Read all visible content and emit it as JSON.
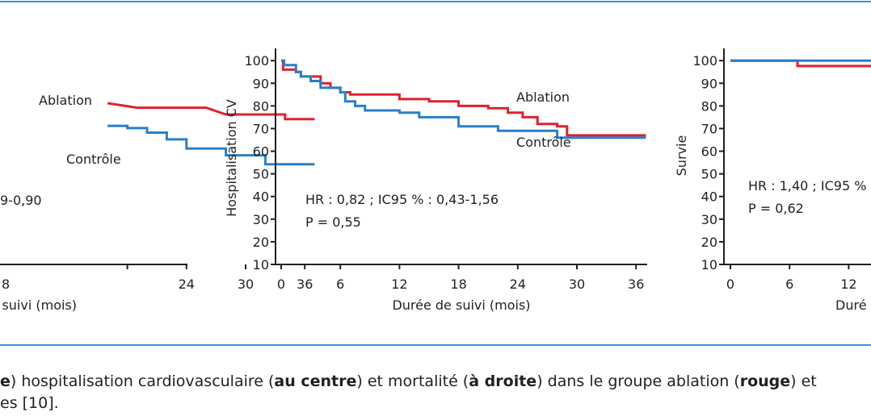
{
  "colors": {
    "ablation": "#e0202e",
    "controle": "#2a7fc8",
    "frame": "#3a8dde",
    "axis": "#231f20"
  },
  "chart_data": [
    {
      "type": "line",
      "title": "",
      "xlabel": "Durée de suivi (mois)",
      "ylabel": "",
      "xlim": [
        0,
        37
      ],
      "ylim": [
        0,
        100
      ],
      "x_ticks": [
        "24",
        "30",
        "36"
      ],
      "x_tick_first_partial": "8",
      "y_ticks": [],
      "series": [
        {
          "name": "Ablation",
          "color": "#e0202e",
          "points": [
            [
              16,
              88
            ],
            [
              19,
              86
            ],
            [
              26,
              86
            ],
            [
              28,
              83
            ],
            [
              34,
              83
            ],
            [
              34,
              81
            ],
            [
              37,
              81
            ]
          ]
        },
        {
          "name": "Contrôle",
          "color": "#2a7fc8",
          "points": [
            [
              16,
              78
            ],
            [
              18,
              78
            ],
            [
              18,
              77
            ],
            [
              20,
              77
            ],
            [
              20,
              75
            ],
            [
              22,
              75
            ],
            [
              22,
              72
            ],
            [
              24,
              72
            ],
            [
              24,
              68
            ],
            [
              28,
              68
            ],
            [
              28,
              65
            ],
            [
              32,
              65
            ],
            [
              32,
              61
            ],
            [
              37,
              61
            ]
          ]
        }
      ],
      "annotations": [
        "9-0,90"
      ]
    },
    {
      "type": "line",
      "title": "",
      "xlabel": "Durée de suivi (mois)",
      "ylabel": "Hospitalisation CV",
      "xlim": [
        0,
        37
      ],
      "ylim": [
        5,
        102
      ],
      "x_ticks": [
        "0",
        "6",
        "12",
        "18",
        "24",
        "30",
        "36"
      ],
      "y_ticks": [
        "10",
        "20",
        "30",
        "40",
        "50",
        "60",
        "70",
        "80",
        "90",
        "100"
      ],
      "series": [
        {
          "name": "Ablation",
          "color": "#e0202e",
          "points": [
            [
              0,
              100
            ],
            [
              0.2,
              100
            ],
            [
              0.2,
              96
            ],
            [
              1.5,
              96
            ],
            [
              1.5,
              95
            ],
            [
              2,
              95
            ],
            [
              2,
              93
            ],
            [
              4,
              93
            ],
            [
              4,
              90
            ],
            [
              5,
              90
            ],
            [
              5,
              88
            ],
            [
              6,
              88
            ],
            [
              6,
              86
            ],
            [
              7,
              86
            ],
            [
              7,
              85
            ],
            [
              12,
              85
            ],
            [
              12,
              83
            ],
            [
              15,
              83
            ],
            [
              15,
              82
            ],
            [
              18,
              82
            ],
            [
              18,
              80
            ],
            [
              21,
              80
            ],
            [
              21,
              79
            ],
            [
              23,
              79
            ],
            [
              23,
              77
            ],
            [
              24.5,
              77
            ],
            [
              24.5,
              75
            ],
            [
              26,
              75
            ],
            [
              26,
              72
            ],
            [
              28,
              72
            ],
            [
              28,
              71
            ],
            [
              29,
              71
            ],
            [
              29,
              67
            ],
            [
              37,
              67
            ]
          ]
        },
        {
          "name": "Contrôle",
          "color": "#2a7fc8",
          "points": [
            [
              0,
              100
            ],
            [
              0.3,
              100
            ],
            [
              0.3,
              98
            ],
            [
              1.5,
              98
            ],
            [
              1.5,
              95
            ],
            [
              2,
              95
            ],
            [
              2,
              93
            ],
            [
              3,
              93
            ],
            [
              3,
              91
            ],
            [
              4,
              91
            ],
            [
              4,
              88
            ],
            [
              6,
              88
            ],
            [
              6,
              86
            ],
            [
              6.5,
              86
            ],
            [
              6.5,
              82
            ],
            [
              7.5,
              82
            ],
            [
              7.5,
              80
            ],
            [
              8.5,
              80
            ],
            [
              8.5,
              78
            ],
            [
              12,
              78
            ],
            [
              12,
              77
            ],
            [
              14,
              77
            ],
            [
              14,
              75
            ],
            [
              18,
              75
            ],
            [
              18,
              71
            ],
            [
              22,
              71
            ],
            [
              22,
              69
            ],
            [
              28,
              69
            ],
            [
              28,
              66
            ],
            [
              37,
              66
            ]
          ]
        }
      ],
      "series_labels": [
        "Ablation",
        "Contrôle"
      ],
      "annotations": [
        "HR : 0,82 ; IC95 % : 0,43-1,56",
        "P = 0,55"
      ]
    },
    {
      "type": "line",
      "title": "",
      "xlabel": "Duré",
      "ylabel": "Survie",
      "xlim": [
        0,
        37
      ],
      "ylim": [
        5,
        102
      ],
      "x_ticks": [
        "0",
        "6",
        "12"
      ],
      "y_ticks": [
        "10",
        "20",
        "30",
        "40",
        "50",
        "60",
        "70",
        "80",
        "90",
        "100"
      ],
      "series": [
        {
          "name": "Ablation",
          "color": "#e0202e",
          "points": [
            [
              0,
              100
            ],
            [
              6.8,
              100
            ],
            [
              6.8,
              97.6
            ],
            [
              14.4,
              97.6
            ]
          ]
        },
        {
          "name": "Contrôle",
          "color": "#2a7fc8",
          "points": [
            [
              0,
              100
            ],
            [
              14.4,
              100
            ]
          ]
        }
      ],
      "annotations": [
        "HR : 1,40 ; IC95 %",
        "P = 0,62"
      ]
    }
  ],
  "caption": {
    "line1": [
      {
        "text": "e",
        "bold": true
      },
      {
        "text": ") hospitalisation cardiovasculaire (",
        "bold": false
      },
      {
        "text": "au centre",
        "bold": true
      },
      {
        "text": ") et mortalité (",
        "bold": false
      },
      {
        "text": "à droite",
        "bold": true
      },
      {
        "text": ") dans le groupe ablation (",
        "bold": false
      },
      {
        "text": "rouge",
        "bold": true
      },
      {
        "text": ") et",
        "bold": false
      }
    ],
    "line2": "es [10]."
  }
}
